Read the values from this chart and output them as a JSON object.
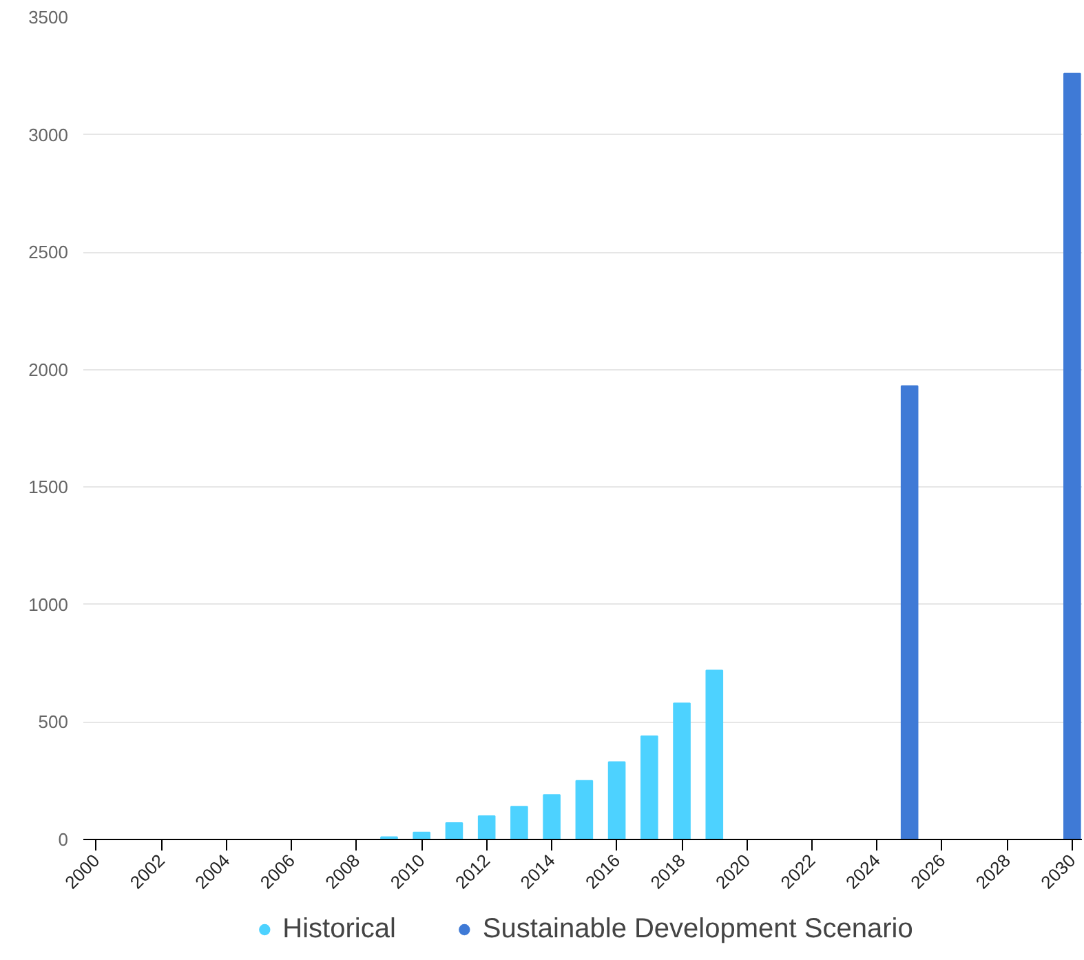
{
  "chart_data": {
    "type": "bar",
    "xlim": [
      1999.6,
      2030.3
    ],
    "xticks": [
      2000,
      2002,
      2004,
      2006,
      2008,
      2010,
      2012,
      2014,
      2016,
      2018,
      2020,
      2022,
      2024,
      2026,
      2028,
      2030
    ],
    "ylim": [
      0,
      3500
    ],
    "yticks": [
      0,
      500,
      1000,
      1500,
      2000,
      2500,
      3000,
      3500
    ],
    "grid": "y",
    "legend": "bottom",
    "series": [
      {
        "name": "Historical",
        "color": "#4dd2ff",
        "x": [
          2009,
          2010,
          2011,
          2012,
          2013,
          2014,
          2015,
          2016,
          2017,
          2018,
          2019
        ],
        "values": [
          10,
          30,
          70,
          100,
          140,
          190,
          250,
          330,
          440,
          580,
          720
        ]
      },
      {
        "name": "Sustainable Development Scenario",
        "color": "#3f7ad6",
        "x": [
          2025,
          2030
        ],
        "values": [
          1930,
          3260
        ]
      }
    ]
  }
}
